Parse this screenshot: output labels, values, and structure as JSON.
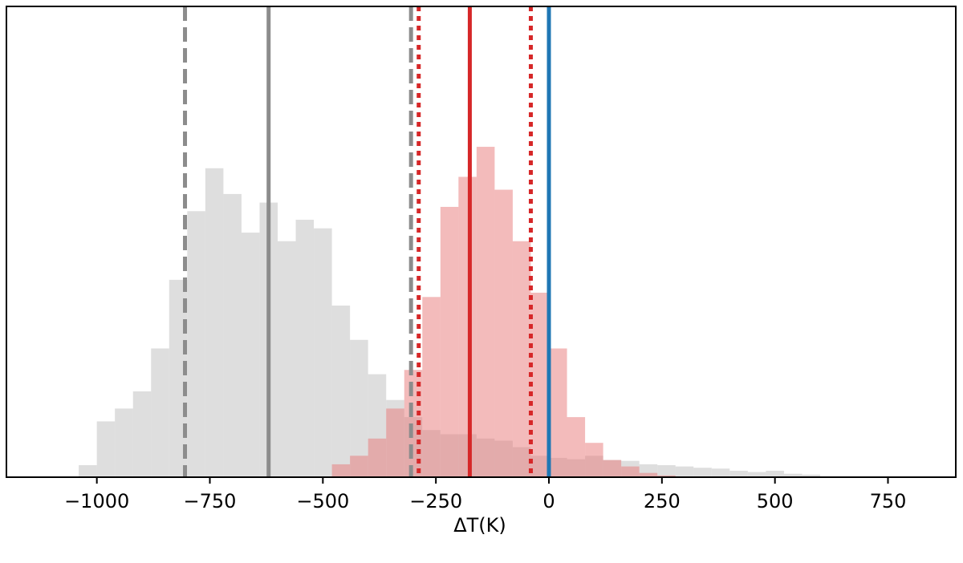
{
  "chart_data": {
    "type": "histogram",
    "title": "",
    "xlabel": "ΔT(K)",
    "ylabel": "",
    "xlim": [
      -1200,
      900
    ],
    "grid": false,
    "legend": "none",
    "xticks": [
      {
        "value": -1000,
        "label": "−1000"
      },
      {
        "value": -750,
        "label": "−750"
      },
      {
        "value": -500,
        "label": "−500"
      },
      {
        "value": -250,
        "label": "−250"
      },
      {
        "value": 0,
        "label": "0"
      },
      {
        "value": 250,
        "label": "250"
      },
      {
        "value": 500,
        "label": "500"
      },
      {
        "value": 750,
        "label": "750"
      }
    ],
    "series": [
      {
        "color": "#c8c8c8",
        "opacity": 0.6,
        "bins": [
          [
            -1040,
            0.028
          ],
          [
            -1000,
            0.13
          ],
          [
            -960,
            0.16
          ],
          [
            -920,
            0.2
          ],
          [
            -880,
            0.3
          ],
          [
            -840,
            0.46
          ],
          [
            -800,
            0.62
          ],
          [
            -760,
            0.72
          ],
          [
            -720,
            0.66
          ],
          [
            -680,
            0.57
          ],
          [
            -640,
            0.64
          ],
          [
            -600,
            0.55
          ],
          [
            -560,
            0.6
          ],
          [
            -520,
            0.58
          ],
          [
            -480,
            0.4
          ],
          [
            -440,
            0.32
          ],
          [
            -400,
            0.24
          ],
          [
            -360,
            0.18
          ],
          [
            -320,
            0.14
          ],
          [
            -280,
            0.11
          ],
          [
            -240,
            0.1
          ],
          [
            -200,
            0.1
          ],
          [
            -160,
            0.09
          ],
          [
            -120,
            0.085
          ],
          [
            -80,
            0.07
          ],
          [
            -40,
            0.05
          ],
          [
            0,
            0.045
          ],
          [
            40,
            0.042
          ],
          [
            80,
            0.05
          ],
          [
            120,
            0.04
          ],
          [
            160,
            0.038
          ],
          [
            200,
            0.03
          ],
          [
            240,
            0.028
          ],
          [
            280,
            0.025
          ],
          [
            320,
            0.022
          ],
          [
            360,
            0.02
          ],
          [
            400,
            0.015
          ],
          [
            440,
            0.012
          ],
          [
            480,
            0.015
          ],
          [
            520,
            0.008
          ],
          [
            560,
            0.006
          ]
        ]
      },
      {
        "color": "#e87878",
        "opacity": 0.5,
        "bins": [
          [
            -480,
            0.03
          ],
          [
            -440,
            0.05
          ],
          [
            -400,
            0.09
          ],
          [
            -360,
            0.16
          ],
          [
            -320,
            0.25
          ],
          [
            -280,
            0.42
          ],
          [
            -240,
            0.63
          ],
          [
            -200,
            0.7
          ],
          [
            -160,
            0.77
          ],
          [
            -120,
            0.67
          ],
          [
            -80,
            0.55
          ],
          [
            -40,
            0.43
          ],
          [
            0,
            0.3
          ],
          [
            40,
            0.14
          ],
          [
            80,
            0.08
          ],
          [
            120,
            0.04
          ],
          [
            160,
            0.025
          ],
          [
            200,
            0.01
          ],
          [
            240,
            0.004
          ]
        ]
      }
    ],
    "vlines": [
      {
        "x": -805,
        "style": "dashed",
        "color": "#8c8c8c"
      },
      {
        "x": -620,
        "style": "solid",
        "color": "#8c8c8c"
      },
      {
        "x": -305,
        "style": "dashed",
        "color": "#8c8c8c"
      },
      {
        "x": -288,
        "style": "dotted",
        "color": "#d62728"
      },
      {
        "x": -175,
        "style": "solid",
        "color": "#d62728"
      },
      {
        "x": -40,
        "style": "dotted",
        "color": "#d62728"
      },
      {
        "x": 0,
        "style": "solid",
        "color": "#1f77b4"
      }
    ]
  }
}
